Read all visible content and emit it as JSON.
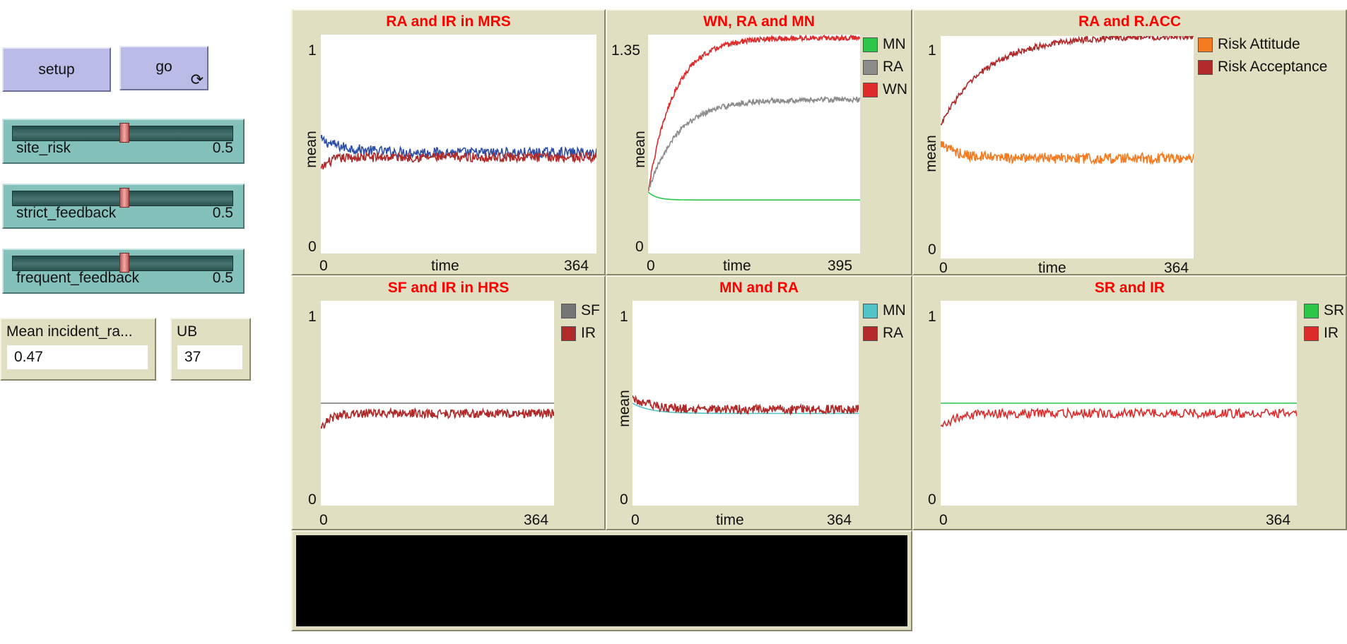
{
  "buttons": {
    "setup_label": "setup",
    "go_label": "go",
    "go_forever_glyph": "⟳"
  },
  "sliders": [
    {
      "name": "site_risk",
      "value": "0.5",
      "level": 0.5
    },
    {
      "name": "strict_feedback",
      "value": "0.5",
      "level": 0.5
    },
    {
      "name": "frequent_feedback",
      "value": "0.5",
      "level": 0.5
    }
  ],
  "monitors": [
    {
      "label": "Mean incident_ra...",
      "value": "0.47"
    },
    {
      "label": "UB",
      "value": "37"
    }
  ],
  "plots": [
    {
      "id": "p1",
      "title": "RA and IR in MRS",
      "ymax_label": "1",
      "ymin_label": "0",
      "xmin_label": "0",
      "xmax_label": "364",
      "xlabel": "time",
      "ylabel": "mean",
      "legend": []
    },
    {
      "id": "p2",
      "title": "WN, RA  and MN",
      "ymax_label": "1.35",
      "ymin_label": "0",
      "xmin_label": "0",
      "xmax_label": "395",
      "xlabel": "time",
      "ylabel": "mean",
      "legend": [
        {
          "label": "MN",
          "color": "#2cc64b"
        },
        {
          "label": "RA",
          "color": "#8c8c8c"
        },
        {
          "label": "WN",
          "color": "#e02b2b"
        }
      ]
    },
    {
      "id": "p3",
      "title": "RA and R.ACC",
      "ymax_label": "1",
      "ymin_label": "0",
      "xmin_label": "0",
      "xmax_label": "364",
      "xlabel": "time",
      "ylabel": "mean",
      "legend": [
        {
          "label": "Risk Attitude",
          "color": "#f47b20"
        },
        {
          "label": "Risk Acceptance",
          "color": "#b02a2a"
        }
      ]
    },
    {
      "id": "p4",
      "title": "SF and IR in HRS",
      "ymax_label": "1",
      "ymin_label": "0",
      "xmin_label": "0",
      "xmax_label": "364",
      "xlabel": "",
      "ylabel": "",
      "legend": [
        {
          "label": "SF",
          "color": "#757575"
        },
        {
          "label": "IR",
          "color": "#b02a2a"
        }
      ]
    },
    {
      "id": "p5",
      "title": "MN and RA",
      "ymax_label": "1",
      "ymin_label": "0",
      "xmin_label": "0",
      "xmax_label": "364",
      "xlabel": "time",
      "ylabel": "mean",
      "legend": [
        {
          "label": "MN",
          "color": "#52c4c8"
        },
        {
          "label": "RA",
          "color": "#b02a2a"
        }
      ]
    },
    {
      "id": "p6",
      "title": "SR and IR",
      "ymax_label": "1",
      "ymin_label": "0",
      "xmin_label": "0",
      "xmax_label": "364",
      "xlabel": "",
      "ylabel": "",
      "legend": [
        {
          "label": "SR",
          "color": "#2cc64b"
        },
        {
          "label": "IR",
          "color": "#e02b2b"
        }
      ]
    }
  ],
  "chart_data": [
    {
      "type": "line",
      "title": "RA and IR in MRS",
      "xlabel": "time",
      "ylabel": "mean",
      "xlim": [
        0,
        364
      ],
      "ylim": [
        0,
        1
      ],
      "series": [
        {
          "color": "#2b4ea8",
          "shape": "flat",
          "start": 0.52,
          "end": 0.46,
          "settle": 0.1,
          "noise": 0.012
        },
        {
          "color": "#b02a2a",
          "shape": "flat",
          "start": 0.38,
          "end": 0.44,
          "settle": 0.03,
          "noise": 0.011
        }
      ]
    },
    {
      "type": "line",
      "title": "WN, RA  and MN",
      "xlabel": "time",
      "ylabel": "mean",
      "xlim": [
        0,
        395
      ],
      "ylim": [
        0,
        1.35
      ],
      "series": [
        {
          "name": "WN",
          "color": "#e02b2b",
          "shape": "rise",
          "start": 0.38,
          "end": 1.33,
          "settle": 0.12,
          "noise": 0.008
        },
        {
          "name": "RA",
          "color": "#8c8c8c",
          "shape": "rise",
          "start": 0.38,
          "end": 0.95,
          "settle": 0.14,
          "noise": 0.008
        },
        {
          "name": "MN",
          "color": "#2cc64b",
          "shape": "decay",
          "start": 0.38,
          "end": 0.33,
          "settle": 0.04,
          "noise": 0.0
        }
      ]
    },
    {
      "type": "line",
      "title": "RA and R.ACC",
      "xlabel": "time",
      "ylabel": "mean",
      "xlim": [
        0,
        364
      ],
      "ylim": [
        0,
        1
      ],
      "series": [
        {
          "name": "Risk Acceptance",
          "color": "#b02a2a",
          "shape": "rise",
          "start": 0.6,
          "end": 1.0,
          "settle": 0.18,
          "noise": 0.007
        },
        {
          "name": "Risk Attitude",
          "color": "#f47b20",
          "shape": "flat",
          "start": 0.52,
          "end": 0.45,
          "settle": 0.07,
          "noise": 0.012
        }
      ]
    },
    {
      "type": "line",
      "title": "SF and IR in HRS",
      "xlim": [
        0,
        364
      ],
      "ylim": [
        0,
        1
      ],
      "series": [
        {
          "name": "SF",
          "color": "#757575",
          "shape": "const",
          "start": 0.5,
          "end": 0.5,
          "settle": 0.0,
          "noise": 0.0
        },
        {
          "name": "IR",
          "color": "#b02a2a",
          "shape": "rise",
          "start": 0.38,
          "end": 0.45,
          "settle": 0.04,
          "noise": 0.011
        }
      ]
    },
    {
      "type": "line",
      "title": "MN and RA",
      "xlabel": "time",
      "ylabel": "mean",
      "xlim": [
        0,
        364
      ],
      "ylim": [
        0,
        1
      ],
      "series": [
        {
          "name": "MN",
          "color": "#52c4c8",
          "shape": "decay",
          "start": 0.5,
          "end": 0.45,
          "settle": 0.08,
          "noise": 0.0
        },
        {
          "name": "RA",
          "color": "#b02a2a",
          "shape": "decay",
          "start": 0.53,
          "end": 0.47,
          "settle": 0.08,
          "noise": 0.011
        }
      ]
    },
    {
      "type": "line",
      "title": "SR and IR",
      "xlim": [
        0,
        364
      ],
      "ylim": [
        0,
        1
      ],
      "series": [
        {
          "name": "SR",
          "color": "#2cc64b",
          "shape": "const",
          "start": 0.5,
          "end": 0.5,
          "settle": 0.0,
          "noise": 0.0
        },
        {
          "name": "IR",
          "color": "#e02b2b",
          "shape": "rise",
          "start": 0.38,
          "end": 0.45,
          "settle": 0.04,
          "noise": 0.011
        }
      ]
    }
  ]
}
